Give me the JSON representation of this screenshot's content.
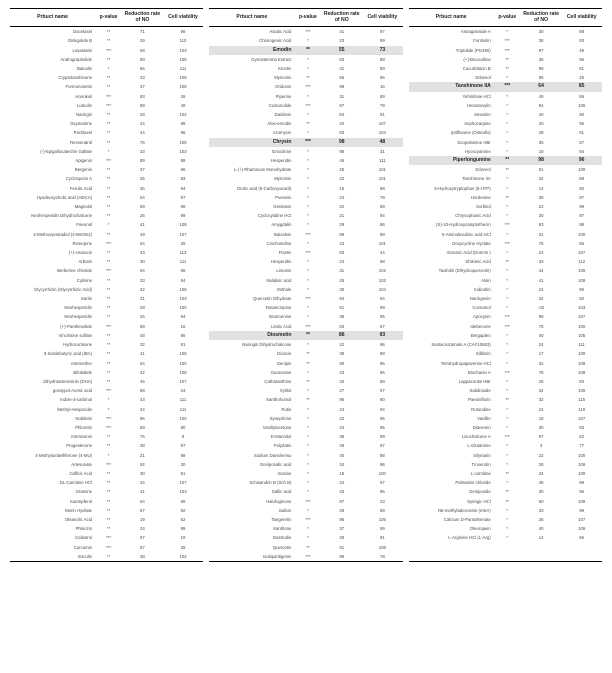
{
  "columns": {
    "name": "Prbuct name",
    "pvalue": "p-value",
    "reduction": "Reduction rate of NO",
    "viability": "Cell viability"
  },
  "highlight_bg": "#e1e1e1",
  "col1": [
    {
      "n": "Docetaxel",
      "p": "**",
      "r": "71",
      "v": "66"
    },
    {
      "n": "Ginkgolide B",
      "p": "**",
      "r": "29",
      "v": "110"
    },
    {
      "n": "Lovastatin",
      "p": "***",
      "r": "68",
      "v": "103"
    },
    {
      "n": "Andrographolide",
      "p": "**",
      "r": "90",
      "v": "106"
    },
    {
      "n": "Baicalin",
      "p": "*",
      "r": "66",
      "v": "111"
    },
    {
      "n": "Cryptotanshinone",
      "p": "**",
      "r": "33",
      "v": "105"
    },
    {
      "n": "Formononetin",
      "p": "**",
      "r": "37",
      "v": "106"
    },
    {
      "n": "Honokiol",
      "p": "***",
      "r": "93",
      "v": "26"
    },
    {
      "n": "Luteolin",
      "p": "***",
      "r": "89",
      "v": "48"
    },
    {
      "n": "Naringin",
      "p": "**",
      "r": "28",
      "v": "102"
    },
    {
      "n": "Oxymatrine",
      "p": "**",
      "r": "24",
      "v": "99"
    },
    {
      "n": "Paclitaxel",
      "p": "**",
      "r": "44",
      "v": "96"
    },
    {
      "n": "Resveratrol",
      "p": "**",
      "r": "76",
      "v": "105"
    },
    {
      "n": "(-)-Epigallocatechin Gallate",
      "p": "*",
      "r": "33",
      "v": "103"
    },
    {
      "n": "Apigenin",
      "p": "***",
      "r": "89",
      "v": "88"
    },
    {
      "n": "Bergenin",
      "p": "**",
      "r": "27",
      "v": "96"
    },
    {
      "n": "Cyclosporin A",
      "p": "**",
      "r": "35",
      "v": "83"
    },
    {
      "n": "Ferulic Acid",
      "p": "**",
      "r": "36",
      "v": "94"
    },
    {
      "n": "Hyodeoxycholic acid (HDCA)",
      "p": "**",
      "r": "54",
      "v": "97"
    },
    {
      "n": "Magnolol",
      "p": "**",
      "r": "59",
      "v": "99"
    },
    {
      "n": "Neohesperidin Dihydrochalcone",
      "p": "**",
      "r": "26",
      "v": "99"
    },
    {
      "n": "Paeonol",
      "p": "*",
      "r": "41",
      "v": "108"
    },
    {
      "n": "2-Methoxyestradiol (2-MeOE2)",
      "p": "**",
      "r": "49",
      "v": "107"
    },
    {
      "n": "Reserpine",
      "p": "***",
      "r": "64",
      "v": "26"
    },
    {
      "n": "(+)-Usniacin",
      "p": "**",
      "r": "33",
      "v": "113"
    },
    {
      "n": "Arbutin",
      "p": "**",
      "r": "30",
      "v": "111"
    },
    {
      "n": "Berberine chloride",
      "p": "***",
      "r": "94",
      "v": "68"
    },
    {
      "n": "Cytisine",
      "p": "**",
      "r": "33",
      "v": "84"
    },
    {
      "n": "Glycyrrhizin (Glycyrrhizic Acid)",
      "p": "**",
      "r": "32",
      "v": "106"
    },
    {
      "n": "Icariin",
      "p": "**",
      "r": "21",
      "v": "103"
    },
    {
      "n": "Neohesperidin",
      "p": "**",
      "r": "28",
      "v": "100"
    },
    {
      "n": "Neohesperidin",
      "p": "**",
      "r": "26",
      "v": "94"
    },
    {
      "n": "(+)-Panthenolide",
      "p": "***",
      "r": "89",
      "v": "15"
    },
    {
      "n": "Vincristine sulfate",
      "p": "**",
      "r": "48",
      "v": "86"
    },
    {
      "n": "Hydrocortisone",
      "p": "**",
      "r": "32",
      "v": "91"
    },
    {
      "n": "3-Indolebutyric acid (IBA)",
      "p": "**",
      "r": "41",
      "v": "105"
    },
    {
      "n": "Artemether",
      "p": "**",
      "r": "64",
      "v": "100"
    },
    {
      "n": "Bilobalide",
      "p": "**",
      "r": "42",
      "v": "108"
    },
    {
      "n": "Dihydroartemisinin (DHA)",
      "p": "**",
      "r": "46",
      "v": "107"
    },
    {
      "n": "gossypol-Acetic acid",
      "p": "***",
      "r": "88",
      "v": "24"
    },
    {
      "n": "Indole-3-carbinol",
      "p": "*",
      "r": "43",
      "v": "111"
    },
    {
      "n": "Methyl-Hesperidin",
      "p": "*",
      "r": "34",
      "v": "111"
    },
    {
      "n": "Nobiletin",
      "p": "***",
      "r": "96",
      "v": "100"
    },
    {
      "n": "Phloretin",
      "p": "***",
      "r": "69",
      "v": "80"
    },
    {
      "n": "Artemisinin",
      "p": "**",
      "r": "76",
      "v": "9"
    },
    {
      "n": "Progesterone",
      "p": "**",
      "r": "38",
      "v": "97"
    },
    {
      "n": "4-Methylumbelliferone (4-MU)",
      "p": "*",
      "r": "21",
      "v": "98"
    },
    {
      "n": "Artesunate",
      "p": "***",
      "r": "92",
      "v": "30"
    },
    {
      "n": "Caffeic Acid",
      "p": "**",
      "r": "30",
      "v": "91"
    },
    {
      "n": "DL-Carnitine HCl",
      "p": "**",
      "r": "24",
      "v": "107"
    },
    {
      "n": "Gramine",
      "p": "**",
      "r": "41",
      "v": "103"
    },
    {
      "n": "Kaempferol",
      "p": "**",
      "r": "64",
      "v": "99"
    },
    {
      "n": "Morin Hydrate",
      "p": "**",
      "r": "87",
      "v": "92"
    },
    {
      "n": "Oleanolic Acid",
      "p": "**",
      "r": "19",
      "v": "62"
    },
    {
      "n": "Phlorizin",
      "p": "**",
      "r": "24",
      "v": "99"
    },
    {
      "n": "Celastrol",
      "p": "***",
      "r": "97",
      "v": "19"
    },
    {
      "n": "Curcumin",
      "p": "***",
      "r": "87",
      "v": "25"
    },
    {
      "n": "Esculin",
      "p": "**",
      "r": "38",
      "v": "102"
    }
  ],
  "col2": [
    {
      "n": "Asiatic Acid",
      "p": "***",
      "r": "41",
      "v": "97"
    },
    {
      "n": "Chlorogenic Acid",
      "p": "*",
      "r": "23",
      "v": "99"
    },
    {
      "n": "Emodin",
      "p": "**",
      "r": "55",
      "v": "73",
      "hl": true
    },
    {
      "n": "Gynostemma Extract",
      "p": "*",
      "r": "83",
      "v": "88"
    },
    {
      "n": "Kinetin",
      "p": "*",
      "r": "41",
      "v": "89"
    },
    {
      "n": "Myricetin",
      "p": "**",
      "r": "65",
      "v": "96"
    },
    {
      "n": "Oridonin",
      "p": "***",
      "r": "98",
      "v": "16"
    },
    {
      "n": "Piperine",
      "p": "*",
      "r": "31",
      "v": "89"
    },
    {
      "n": "Costunolide",
      "p": "***",
      "r": "97",
      "v": "79"
    },
    {
      "n": "Daidzein",
      "p": "*",
      "r": "54",
      "v": "91"
    },
    {
      "n": "Aloe-emodin",
      "p": "**",
      "r": "20",
      "v": "107"
    },
    {
      "n": "Azomycin",
      "p": "*",
      "r": "93",
      "v": "104"
    },
    {
      "n": "Chrysin",
      "p": "***",
      "r": "98",
      "v": "48",
      "hl": true
    },
    {
      "n": "Eriocitrine",
      "p": "*",
      "r": "98",
      "v": "31"
    },
    {
      "n": "Hesperidin",
      "p": "*",
      "r": "46",
      "v": "111"
    },
    {
      "n": "L-(+)-Rhamnose Monohydrate",
      "p": "*",
      "r": "25",
      "v": "101"
    },
    {
      "n": "Myricitrin",
      "p": "*",
      "r": "22",
      "v": "101"
    },
    {
      "n": "Orotic acid (6-Carboxyuracil)",
      "p": "*",
      "r": "19",
      "v": "98"
    },
    {
      "n": "Puerarin",
      "p": "*",
      "r": "24",
      "v": "79"
    },
    {
      "n": "Genistein",
      "p": "*",
      "r": "20",
      "v": "89"
    },
    {
      "n": "Cyclocytidine HCl",
      "p": "*",
      "r": "21",
      "v": "94"
    },
    {
      "n": "Amygdalin",
      "p": "*",
      "r": "29",
      "v": "86"
    },
    {
      "n": "Baicalein",
      "p": "***",
      "r": "89",
      "v": "89"
    },
    {
      "n": "Cinchonidine",
      "p": "*",
      "r": "23",
      "v": "101"
    },
    {
      "n": "Fisetin",
      "p": "***",
      "r": "93",
      "v": "44"
    },
    {
      "n": "Hesperidin",
      "p": "*",
      "r": "24",
      "v": "98"
    },
    {
      "n": "Limonin",
      "p": "*",
      "r": "31",
      "v": "102"
    },
    {
      "n": "Nalidixic acid",
      "p": "*",
      "r": "25",
      "v": "102"
    },
    {
      "n": "Osthole",
      "p": "*",
      "r": "30",
      "v": "104"
    },
    {
      "n": "Quercetin Dihydrate",
      "p": "***",
      "r": "94",
      "v": "64"
    },
    {
      "n": "Rutaecarpine",
      "p": "*",
      "r": "61",
      "v": "99"
    },
    {
      "n": "Sinomenine",
      "p": "*",
      "r": "38",
      "v": "95"
    },
    {
      "n": "Litolic Acid",
      "p": "***",
      "r": "83",
      "v": "87"
    },
    {
      "n": "Diosmetin",
      "p": "**",
      "r": "86",
      "v": "93",
      "hl": true
    },
    {
      "n": "Naringin Dihydrochalcone",
      "p": "*",
      "r": "22",
      "v": "96"
    },
    {
      "n": "Dioscin",
      "p": "**",
      "r": "39",
      "v": "88"
    },
    {
      "n": "Genipin",
      "p": "**",
      "r": "90",
      "v": "96"
    },
    {
      "n": "Guanosine",
      "p": "*",
      "r": "43",
      "v": "96"
    },
    {
      "n": "Catharanthine",
      "p": "**",
      "r": "40",
      "v": "89"
    },
    {
      "n": "Xylitol",
      "p": "*",
      "r": "27",
      "v": "97"
    },
    {
      "n": "Xanthohumol",
      "p": "**",
      "r": "96",
      "v": "80"
    },
    {
      "n": "Rutin",
      "p": "*",
      "r": "24",
      "v": "94"
    },
    {
      "n": "Synephrine",
      "p": "*",
      "r": "22",
      "v": "95"
    },
    {
      "n": "Vanillylacetone",
      "p": "*",
      "r": "44",
      "v": "95"
    },
    {
      "n": "D-Mannitol",
      "p": "*",
      "r": "38",
      "v": "99"
    },
    {
      "n": "Polydatin",
      "p": "*",
      "r": "48",
      "v": "97"
    },
    {
      "n": "Sodium Danshensu",
      "p": "*",
      "r": "40",
      "v": "88"
    },
    {
      "n": "Geniposidic acid",
      "p": "*",
      "r": "34",
      "v": "96"
    },
    {
      "n": "Inosine",
      "p": "*",
      "r": "18",
      "v": "100"
    },
    {
      "n": "Schisandrin B (Sch B)",
      "p": "*",
      "r": "34",
      "v": "97"
    },
    {
      "n": "Gallic acid",
      "p": "*",
      "r": "33",
      "v": "96"
    },
    {
      "n": "Halofuginone",
      "p": "***",
      "r": "97",
      "v": "23"
    },
    {
      "n": "Salicin",
      "p": "*",
      "r": "29",
      "v": "89"
    },
    {
      "n": "Tangeretin",
      "p": "***",
      "r": "96",
      "v": "105"
    },
    {
      "n": "Xanthone",
      "p": "*",
      "r": "37",
      "v": "99"
    },
    {
      "n": "Gastrodin",
      "p": "*",
      "r": "29",
      "v": "91"
    },
    {
      "n": "Quercetin",
      "p": "**",
      "r": "91",
      "v": "108"
    },
    {
      "n": "Isoliquiritigenin",
      "p": "***",
      "r": "98",
      "v": "78"
    }
  ],
  "col3": [
    {
      "n": "Astragaloside A",
      "p": "*",
      "r": "30",
      "v": "88"
    },
    {
      "n": "Forskolin",
      "p": "***",
      "r": "38",
      "v": "93"
    },
    {
      "n": "Triptolide (PG490)",
      "p": "***",
      "r": "97",
      "v": "49"
    },
    {
      "n": "(+)-Bicuculline",
      "p": "**",
      "r": "35",
      "v": "96"
    },
    {
      "n": "Cucurbitacin B",
      "p": "**",
      "r": "98",
      "v": "81"
    },
    {
      "n": "Sclareol",
      "p": "*",
      "r": "95",
      "v": "45"
    },
    {
      "n": "Tanshinone IIA",
      "p": "***",
      "r": "64",
      "v": "85",
      "hl": true
    },
    {
      "n": "Yohimbine HCl",
      "p": "*",
      "r": "49",
      "v": "86"
    },
    {
      "n": "Hematoxylin",
      "p": "*",
      "r": "94",
      "v": "106"
    },
    {
      "n": "Sesamin",
      "p": "*",
      "r": "40",
      "v": "90"
    },
    {
      "n": "Sophocarpine",
      "p": "*",
      "r": "20",
      "v": "95"
    },
    {
      "n": "Ipriflavone (Osteofix)",
      "p": "*",
      "r": "28",
      "v": "91"
    },
    {
      "n": "Scopolamine HBr",
      "p": "*",
      "r": "35",
      "v": "87"
    },
    {
      "n": "Hyoscyamine",
      "p": "*",
      "r": "18",
      "v": "94"
    },
    {
      "n": "Piperlongumine",
      "p": "**",
      "r": "98",
      "v": "96",
      "hl": true
    },
    {
      "n": "Sclareol",
      "p": "**",
      "r": "91",
      "v": "109"
    },
    {
      "n": "Tanshinone IIA",
      "p": "*",
      "r": "34",
      "v": "88"
    },
    {
      "n": "6-Hydroxytryptophan (5-HTP)",
      "p": "*",
      "r": "14",
      "v": "90"
    },
    {
      "n": "Hordenine",
      "p": "**",
      "r": "38",
      "v": "97"
    },
    {
      "n": "Sorbitol",
      "p": "*",
      "r": "22",
      "v": "99"
    },
    {
      "n": "Chrysophanic Acid",
      "p": "*",
      "r": "30",
      "v": "97"
    },
    {
      "n": "(S)-10-Hydroxycamptothecin",
      "p": "***",
      "r": "63",
      "v": "98"
    },
    {
      "n": "5-Aminolevulinic acid HCl",
      "p": "*",
      "r": "31",
      "v": "100"
    },
    {
      "n": "Doxycycline Hyclate",
      "p": "***",
      "r": "78",
      "v": "86"
    },
    {
      "n": "Abscisic Acid (Dormin )",
      "p": "*",
      "r": "22",
      "v": "107"
    },
    {
      "n": "Shikimic Acid",
      "p": "**",
      "r": "33",
      "v": "112"
    },
    {
      "n": "Taxifolin (Dihydroquercetin)",
      "p": "*",
      "r": "44",
      "v": "109"
    },
    {
      "n": "Aloin",
      "p": "*",
      "r": "41",
      "v": "108"
    },
    {
      "n": "Indirubin",
      "p": "*",
      "r": "24",
      "v": "95"
    },
    {
      "n": "Naringenin",
      "p": "*",
      "r": "34",
      "v": "92"
    },
    {
      "n": "Cursumol",
      "p": "*",
      "r": "-42",
      "v": "103"
    },
    {
      "n": "Apocynin",
      "p": "***",
      "r": "98",
      "v": "107"
    },
    {
      "n": "Idebenone",
      "p": "***",
      "r": "78",
      "v": "100"
    },
    {
      "n": "Bergapten",
      "p": "*",
      "r": "40",
      "v": "105"
    },
    {
      "n": "Santacruzamate A (CAY10683)",
      "p": "*",
      "r": "24",
      "v": "111"
    },
    {
      "n": "Silibinin",
      "p": "*",
      "r": "17",
      "v": "109"
    },
    {
      "n": "Tetrahydropapaverine HCl",
      "p": "*",
      "r": "32",
      "v": "108"
    },
    {
      "n": "Biochanin A",
      "p": "***",
      "r": "78",
      "v": "108"
    },
    {
      "n": "Lappaconite HBr",
      "p": "*",
      "r": "28",
      "v": "93"
    },
    {
      "n": "Salidroside",
      "p": "*",
      "r": "34",
      "v": "109"
    },
    {
      "n": "Paeoniflorin",
      "p": "**",
      "r": "32",
      "v": "115"
    },
    {
      "n": "Rotundine",
      "p": "*",
      "r": "24",
      "v": "119"
    },
    {
      "n": "Vanillin",
      "p": "*",
      "r": "18",
      "v": "107"
    },
    {
      "n": "Diacerein",
      "p": "*",
      "r": "30",
      "v": "93"
    },
    {
      "n": "Lisochalcone A",
      "p": "***",
      "r": "97",
      "v": "62"
    },
    {
      "n": "L-Glutamine",
      "p": "*",
      "r": "3",
      "v": "77"
    },
    {
      "n": "Silymarin",
      "p": "*",
      "r": "22",
      "v": "100"
    },
    {
      "n": "Troxerutin",
      "p": "*",
      "r": "28",
      "v": "106"
    },
    {
      "n": "L-carnitine",
      "p": "**",
      "r": "34",
      "v": "109"
    },
    {
      "n": "Palmatine chloride",
      "p": "*",
      "r": "45",
      "v": "99"
    },
    {
      "n": "Geniposide",
      "p": "**",
      "r": "30",
      "v": "96"
    },
    {
      "n": "Syringic HCl",
      "p": "**",
      "r": "60",
      "v": "109"
    },
    {
      "n": "N6-methyladenosine (mSA)",
      "p": "*",
      "r": "33",
      "v": "99"
    },
    {
      "n": "Calcium D-Pantothenate",
      "p": "*",
      "r": "26",
      "v": "107"
    },
    {
      "n": "Oleuropein",
      "p": "*",
      "r": "40",
      "v": "106"
    },
    {
      "n": "L-Arginine HCl (L-Arg)",
      "p": "*",
      "r": "14",
      "v": "65"
    },
    {
      "n": "",
      "p": "",
      "r": "",
      "v": ""
    },
    {
      "n": "",
      "p": "",
      "r": "",
      "v": ""
    }
  ]
}
